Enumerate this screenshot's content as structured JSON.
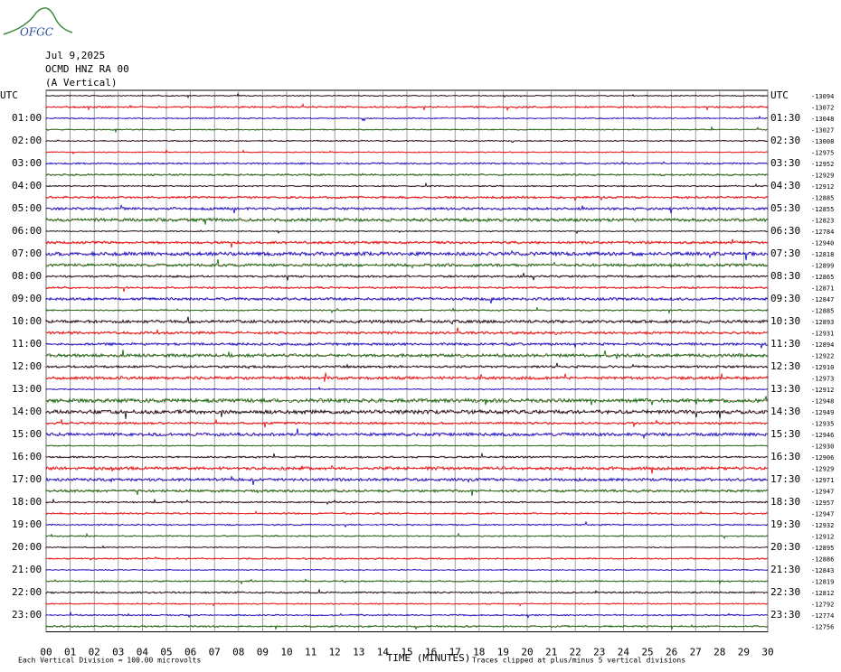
{
  "logo": "OFGC",
  "header": {
    "date": "Jul 9,2025",
    "station": "OCMD HNZ RA 00",
    "component": "(A Vertical)"
  },
  "rows": {
    "left_labels": [
      "UTC",
      "01:00",
      "02:00",
      "03:00",
      "04:00",
      "05:00",
      "06:00",
      "07:00",
      "08:00",
      "09:00",
      "10:00",
      "11:00",
      "12:00",
      "13:00",
      "14:00",
      "15:00",
      "16:00",
      "17:00",
      "18:00",
      "19:00",
      "20:00",
      "21:00",
      "22:00",
      "23:00"
    ],
    "right_labels": [
      "UTC",
      "01:30",
      "02:30",
      "03:30",
      "04:30",
      "05:30",
      "06:30",
      "07:30",
      "08:30",
      "09:30",
      "10:30",
      "11:30",
      "12:30",
      "13:30",
      "14:30",
      "15:30",
      "16:30",
      "17:30",
      "18:30",
      "19:30",
      "20:30",
      "21:30",
      "22:30",
      "23:30"
    ],
    "offsets": [
      "-13094",
      "-13072",
      "-13048",
      "-13027",
      "-13008",
      "-12975",
      "-12952",
      "-12929",
      "-12912",
      "-12885",
      "-12855",
      "-12823",
      "-12784",
      "-12940",
      "-12818",
      "-12899",
      "-12865",
      "-12871",
      "-12847",
      "-12885",
      "-12893",
      "-12931",
      "-12894",
      "-12922",
      "-12910",
      "-12973",
      "-12912",
      "-12948",
      "-12949",
      "-12935",
      "-12946",
      "-12930",
      "-12906",
      "-12929",
      "-12971",
      "-12947",
      "-12957",
      "-12947",
      "-12932",
      "-12912",
      "-12895",
      "-12886",
      "-12843",
      "-12819",
      "-12812",
      "-12792",
      "-12774",
      "-12756"
    ]
  },
  "x_axis": {
    "ticks": [
      "00",
      "01",
      "02",
      "03",
      "04",
      "05",
      "06",
      "07",
      "08",
      "09",
      "10",
      "11",
      "12",
      "13",
      "14",
      "15",
      "16",
      "17",
      "18",
      "19",
      "20",
      "21",
      "22",
      "23",
      "24",
      "25",
      "26",
      "27",
      "28",
      "29",
      "30"
    ],
    "label": "TIME (MINUTES)"
  },
  "footer": {
    "division": "Each Vertical Division =  100.00 microvolts",
    "clip": "Traces clipped at plus/minus 5 vertical divisions"
  }
}
